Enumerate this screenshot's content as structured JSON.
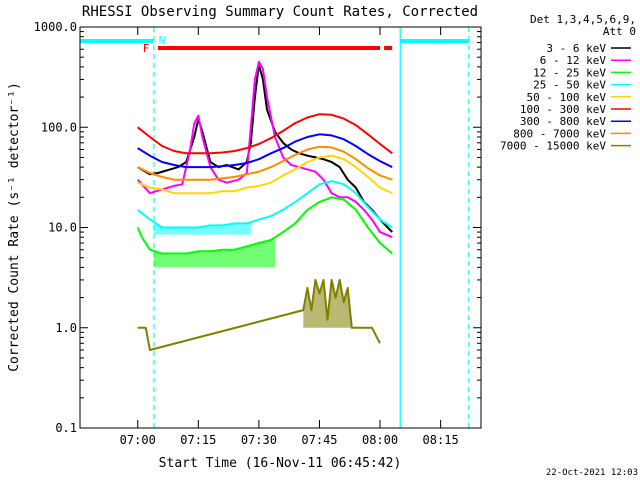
{
  "chart_data": {
    "type": "line",
    "title": "RHESSI Observing Summary Count Rates, Corrected",
    "xlabel": "Start Time (16-Nov-11 06:45:42)",
    "ylabel": "Corrected Count Rate (s⁻¹ detector⁻¹)",
    "xlim": [
      "06:45:42",
      "08:25:00"
    ],
    "ylim": [
      0.1,
      1000
    ],
    "yscale": "log",
    "x_ticks": [
      "07:00",
      "07:15",
      "07:30",
      "07:45",
      "08:00",
      "08:15"
    ],
    "y_ticks": [
      "0.1",
      "1.0",
      "10.0",
      "100.0",
      "1000.0"
    ],
    "legend_header": [
      "Det 1,3,4,5,6,9,",
      "Att 0"
    ],
    "legend_position": "right",
    "timestamp": "22-Oct-2021 12:03",
    "annotations": {
      "night_marker": "N",
      "flare_marker": "F"
    },
    "series": [
      {
        "name": "3 - 6 keV",
        "color": "#000000",
        "points": [
          [
            "07:00",
            40
          ],
          [
            "07:03",
            34
          ],
          [
            "07:05",
            35
          ],
          [
            "07:08",
            38
          ],
          [
            "07:10",
            40
          ],
          [
            "07:12",
            45
          ],
          [
            "07:14",
            80
          ],
          [
            "07:15",
            120
          ],
          [
            "07:16",
            90
          ],
          [
            "07:18",
            45
          ],
          [
            "07:20",
            40
          ],
          [
            "07:22",
            42
          ],
          [
            "07:25",
            38
          ],
          [
            "07:27",
            45
          ],
          [
            "07:28",
            70
          ],
          [
            "07:29",
            200
          ],
          [
            "07:30",
            420
          ],
          [
            "07:31",
            300
          ],
          [
            "07:32",
            150
          ],
          [
            "07:34",
            90
          ],
          [
            "07:36",
            70
          ],
          [
            "07:38",
            60
          ],
          [
            "07:40",
            55
          ],
          [
            "07:42",
            52
          ],
          [
            "07:44",
            50
          ],
          [
            "07:46",
            48
          ],
          [
            "07:48",
            45
          ],
          [
            "07:50",
            40
          ],
          [
            "07:52",
            30
          ],
          [
            "07:54",
            25
          ],
          [
            "07:56",
            18
          ],
          [
            "07:58",
            15
          ],
          [
            "08:00",
            12
          ],
          [
            "08:03",
            9
          ]
        ]
      },
      {
        "name": "6 - 12 keV",
        "color": "#ff00ff",
        "points": [
          [
            "07:00",
            30
          ],
          [
            "07:03",
            22
          ],
          [
            "07:06",
            24
          ],
          [
            "07:09",
            26
          ],
          [
            "07:11",
            27
          ],
          [
            "07:13",
            60
          ],
          [
            "07:14",
            110
          ],
          [
            "07:15",
            130
          ],
          [
            "07:16",
            80
          ],
          [
            "07:18",
            40
          ],
          [
            "07:20",
            30
          ],
          [
            "07:22",
            28
          ],
          [
            "07:25",
            30
          ],
          [
            "07:27",
            35
          ],
          [
            "07:28",
            100
          ],
          [
            "07:29",
            300
          ],
          [
            "07:30",
            450
          ],
          [
            "07:31",
            380
          ],
          [
            "07:32",
            200
          ],
          [
            "07:34",
            80
          ],
          [
            "07:36",
            50
          ],
          [
            "07:38",
            42
          ],
          [
            "07:40",
            40
          ],
          [
            "07:42",
            38
          ],
          [
            "07:44",
            36
          ],
          [
            "07:46",
            30
          ],
          [
            "07:48",
            22
          ],
          [
            "07:50",
            20
          ],
          [
            "07:52",
            20
          ],
          [
            "07:54",
            18
          ],
          [
            "07:56",
            15
          ],
          [
            "07:58",
            12
          ],
          [
            "08:00",
            9
          ],
          [
            "08:03",
            8
          ]
        ]
      },
      {
        "name": "12 - 25 keV",
        "color": "#00ff00",
        "points": [
          [
            "07:00",
            10
          ],
          [
            "07:01",
            8
          ],
          [
            "07:03",
            6
          ],
          [
            "07:06",
            5.5
          ],
          [
            "07:09",
            5.5
          ],
          [
            "07:12",
            5.5
          ],
          [
            "07:15",
            5.8
          ],
          [
            "07:18",
            5.8
          ],
          [
            "07:21",
            6
          ],
          [
            "07:24",
            6
          ],
          [
            "07:27",
            6.5
          ],
          [
            "07:30",
            7
          ],
          [
            "07:33",
            7.5
          ],
          [
            "07:36",
            9
          ],
          [
            "07:39",
            11
          ],
          [
            "07:42",
            15
          ],
          [
            "07:45",
            18
          ],
          [
            "07:48",
            20
          ],
          [
            "07:51",
            19
          ],
          [
            "07:54",
            15
          ],
          [
            "07:57",
            10
          ],
          [
            "08:00",
            7
          ],
          [
            "08:03",
            5.5
          ]
        ]
      },
      {
        "name": "25 - 50 keV",
        "color": "#00ffff",
        "points": [
          [
            "07:00",
            15
          ],
          [
            "07:03",
            12
          ],
          [
            "07:06",
            10
          ],
          [
            "07:09",
            10
          ],
          [
            "07:12",
            10
          ],
          [
            "07:15",
            10
          ],
          [
            "07:18",
            10.5
          ],
          [
            "07:21",
            10.5
          ],
          [
            "07:24",
            11
          ],
          [
            "07:27",
            11
          ],
          [
            "07:30",
            12
          ],
          [
            "07:33",
            13
          ],
          [
            "07:36",
            15
          ],
          [
            "07:39",
            18
          ],
          [
            "07:42",
            22
          ],
          [
            "07:45",
            27
          ],
          [
            "07:48",
            29
          ],
          [
            "07:51",
            27
          ],
          [
            "07:54",
            22
          ],
          [
            "07:57",
            16
          ],
          [
            "08:00",
            12
          ],
          [
            "08:03",
            10
          ]
        ]
      },
      {
        "name": "50 - 100 keV",
        "color": "#ffd700",
        "points": [
          [
            "07:00",
            28
          ],
          [
            "07:03",
            25
          ],
          [
            "07:06",
            24
          ],
          [
            "07:09",
            22
          ],
          [
            "07:12",
            22
          ],
          [
            "07:15",
            22
          ],
          [
            "07:18",
            22
          ],
          [
            "07:21",
            23
          ],
          [
            "07:24",
            23
          ],
          [
            "07:27",
            25
          ],
          [
            "07:30",
            26
          ],
          [
            "07:33",
            28
          ],
          [
            "07:36",
            33
          ],
          [
            "07:39",
            38
          ],
          [
            "07:42",
            45
          ],
          [
            "07:45",
            50
          ],
          [
            "07:48",
            52
          ],
          [
            "07:51",
            48
          ],
          [
            "07:54",
            40
          ],
          [
            "07:57",
            32
          ],
          [
            "08:00",
            25
          ],
          [
            "08:03",
            22
          ]
        ]
      },
      {
        "name": "100 - 300 keV",
        "color": "#ff0000",
        "points": [
          [
            "07:00",
            100
          ],
          [
            "07:03",
            80
          ],
          [
            "07:06",
            65
          ],
          [
            "07:09",
            58
          ],
          [
            "07:12",
            55
          ],
          [
            "07:15",
            55
          ],
          [
            "07:18",
            55
          ],
          [
            "07:21",
            56
          ],
          [
            "07:24",
            58
          ],
          [
            "07:27",
            62
          ],
          [
            "07:30",
            68
          ],
          [
            "07:33",
            78
          ],
          [
            "07:36",
            92
          ],
          [
            "07:39",
            110
          ],
          [
            "07:42",
            125
          ],
          [
            "07:45",
            135
          ],
          [
            "07:48",
            133
          ],
          [
            "07:51",
            122
          ],
          [
            "07:54",
            105
          ],
          [
            "07:57",
            85
          ],
          [
            "08:00",
            68
          ],
          [
            "08:03",
            55
          ]
        ]
      },
      {
        "name": "300 - 800 keV",
        "color": "#0000ff",
        "points": [
          [
            "07:00",
            62
          ],
          [
            "07:03",
            52
          ],
          [
            "07:06",
            45
          ],
          [
            "07:09",
            42
          ],
          [
            "07:12",
            40
          ],
          [
            "07:15",
            40
          ],
          [
            "07:18",
            40
          ],
          [
            "07:21",
            41
          ],
          [
            "07:24",
            42
          ],
          [
            "07:27",
            44
          ],
          [
            "07:30",
            48
          ],
          [
            "07:33",
            55
          ],
          [
            "07:36",
            62
          ],
          [
            "07:39",
            72
          ],
          [
            "07:42",
            80
          ],
          [
            "07:45",
            85
          ],
          [
            "07:48",
            83
          ],
          [
            "07:51",
            76
          ],
          [
            "07:54",
            65
          ],
          [
            "07:57",
            54
          ],
          [
            "08:00",
            46
          ],
          [
            "08:03",
            40
          ]
        ]
      },
      {
        "name": "800 - 7000 keV",
        "color": "#ff8c00",
        "points": [
          [
            "07:00",
            40
          ],
          [
            "07:03",
            35
          ],
          [
            "07:06",
            32
          ],
          [
            "07:09",
            30
          ],
          [
            "07:12",
            30
          ],
          [
            "07:15",
            30
          ],
          [
            "07:18",
            30
          ],
          [
            "07:21",
            31
          ],
          [
            "07:24",
            32
          ],
          [
            "07:27",
            34
          ],
          [
            "07:30",
            36
          ],
          [
            "07:33",
            40
          ],
          [
            "07:36",
            46
          ],
          [
            "07:39",
            53
          ],
          [
            "07:42",
            60
          ],
          [
            "07:45",
            64
          ],
          [
            "07:48",
            63
          ],
          [
            "07:51",
            57
          ],
          [
            "07:54",
            48
          ],
          [
            "07:57",
            39
          ],
          [
            "08:00",
            33
          ],
          [
            "08:03",
            30
          ]
        ]
      },
      {
        "name": "7000 - 15000 keV",
        "color": "#808000",
        "points": [
          [
            "07:00",
            1.0
          ],
          [
            "07:02",
            1.0
          ],
          [
            "07:03",
            0.6
          ],
          [
            "07:41",
            1.5
          ],
          [
            "07:42",
            2.5
          ],
          [
            "07:43",
            1.5
          ],
          [
            "07:44",
            3.0
          ],
          [
            "07:45",
            2.2
          ],
          [
            "07:46",
            3.0
          ],
          [
            "07:47",
            1.2
          ],
          [
            "07:48",
            3.0
          ],
          [
            "07:49",
            2.0
          ],
          [
            "07:50",
            3.0
          ],
          [
            "07:51",
            1.8
          ],
          [
            "07:52",
            2.5
          ],
          [
            "07:53",
            1.0
          ],
          [
            "07:55",
            1.0
          ],
          [
            "07:58",
            1.0
          ],
          [
            "08:00",
            0.7
          ]
        ]
      }
    ],
    "fill_segments": [
      {
        "series": "12 - 25 keV",
        "from": "07:04",
        "to": "07:34",
        "low": 4.0
      },
      {
        "series": "25 - 50 keV",
        "from": "07:04",
        "to": "07:28",
        "low": 8.5
      },
      {
        "series": "7000 - 15000 keV",
        "from": "07:41",
        "to": "07:53",
        "low": 1.0
      }
    ],
    "marker_bars": [
      {
        "label": "N",
        "color": "#00ffff",
        "from": "06:45:42",
        "to": "07:04"
      },
      {
        "label": "N",
        "color": "#00ffff",
        "from": "08:05",
        "to": "08:22"
      },
      {
        "label": "F",
        "color": "#ff0000",
        "from": "07:05",
        "to": "08:00"
      },
      {
        "label": "F",
        "color": "#ff0000",
        "from": "08:01",
        "to": "08:03"
      }
    ],
    "vertical_lines": [
      {
        "time": "07:04",
        "style": "dashed",
        "color": "#00ffff"
      },
      {
        "time": "08:05",
        "style": "solid",
        "color": "#00ffff"
      },
      {
        "time": "08:22",
        "style": "dashed",
        "color": "#00ffff"
      }
    ]
  }
}
